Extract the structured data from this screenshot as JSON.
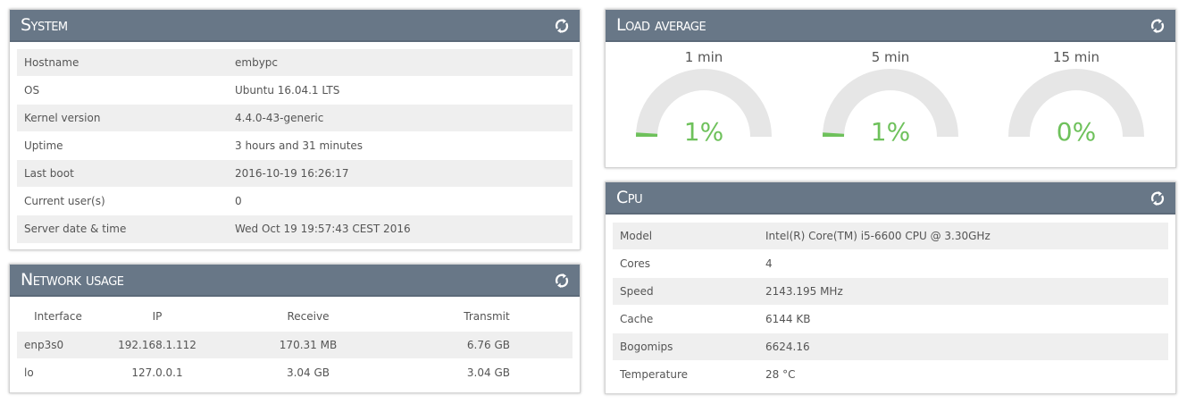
{
  "system": {
    "title": "System",
    "rows": [
      {
        "label": "Hostname",
        "value": "embypc"
      },
      {
        "label": "OS",
        "value": "Ubuntu 16.04.1 LTS"
      },
      {
        "label": "Kernel version",
        "value": "4.4.0-43-generic"
      },
      {
        "label": "Uptime",
        "value": "3 hours and 31 minutes"
      },
      {
        "label": "Last boot",
        "value": "2016-10-19 16:26:17"
      },
      {
        "label": "Current user(s)",
        "value": "0"
      },
      {
        "label": "Server date & time",
        "value": "Wed Oct 19 19:57:43 CEST 2016"
      }
    ]
  },
  "network": {
    "title": "Network usage",
    "headers": [
      "Interface",
      "IP",
      "Receive",
      "Transmit"
    ],
    "rows": [
      {
        "interface": "enp3s0",
        "ip": "192.168.1.112",
        "receive": "170.31 MB",
        "transmit": "6.76 GB"
      },
      {
        "interface": "lo",
        "ip": "127.0.0.1",
        "receive": "3.04 GB",
        "transmit": "3.04 GB"
      }
    ]
  },
  "load": {
    "title": "Load average",
    "gauges": [
      {
        "label": "1 min",
        "value": "1%",
        "fraction": 0.01
      },
      {
        "label": "5 min",
        "value": "1%",
        "fraction": 0.01
      },
      {
        "label": "15 min",
        "value": "0%",
        "fraction": 0.0
      }
    ]
  },
  "cpu": {
    "title": "Cpu",
    "rows": [
      {
        "label": "Model",
        "value": "Intel(R) Core(TM) i5-6600 CPU @ 3.30GHz"
      },
      {
        "label": "Cores",
        "value": "4"
      },
      {
        "label": "Speed",
        "value": "2143.195 MHz"
      },
      {
        "label": "Cache",
        "value": "6144 KB"
      },
      {
        "label": "Bogomips",
        "value": "6624.16"
      },
      {
        "label": "Temperature",
        "value": "28 °C"
      }
    ]
  },
  "colors": {
    "header_bg": "#687787",
    "gauge_track": "#e6e6e6",
    "gauge_fill": "#6ec15b",
    "row_alt": "#efefef"
  },
  "icons": {
    "refresh": "refresh-icon"
  }
}
